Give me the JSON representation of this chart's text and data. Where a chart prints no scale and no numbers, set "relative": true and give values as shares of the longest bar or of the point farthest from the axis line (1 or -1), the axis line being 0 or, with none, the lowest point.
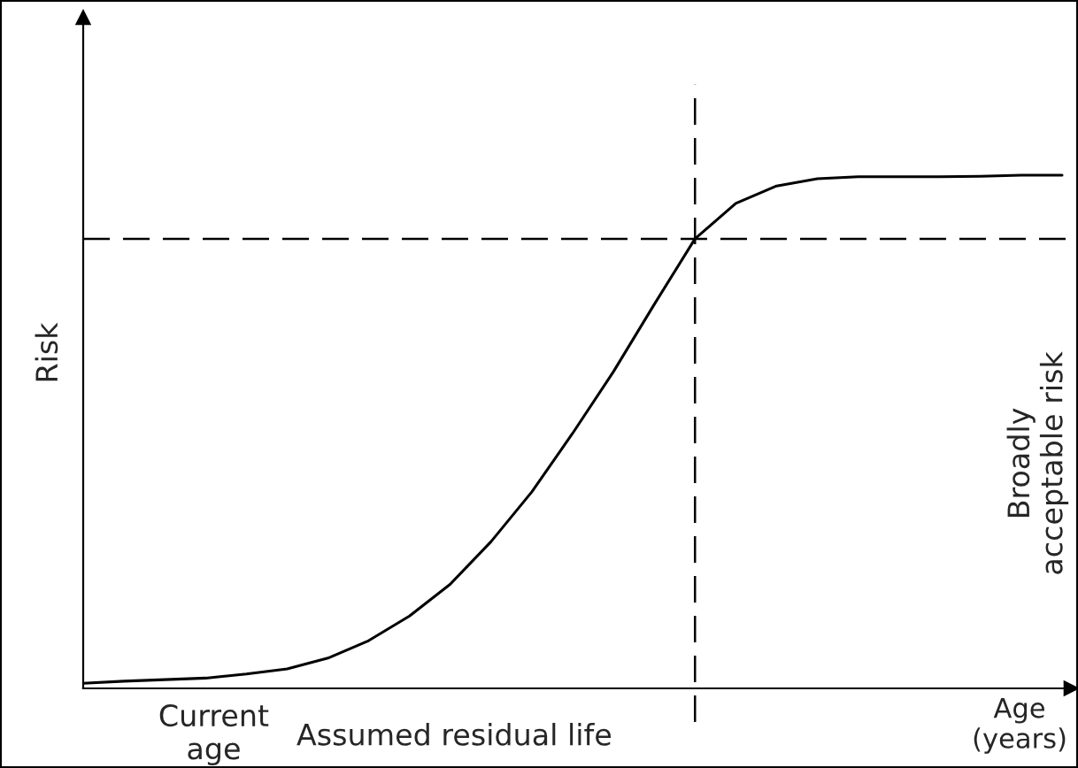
{
  "chart_data": {
    "type": "line",
    "relative": true,
    "xlabel": "Age\n(years)",
    "ylabel": "Risk",
    "categories": [
      null,
      null,
      null,
      null,
      null,
      null,
      null,
      null,
      null,
      null,
      null,
      null,
      null,
      null,
      null,
      null,
      null,
      null,
      null,
      null,
      null,
      null,
      null,
      null,
      null
    ],
    "series": [
      {
        "color": "#000000",
        "values": [
          0.01,
          0.014,
          0.017,
          0.02,
          0.028,
          0.038,
          0.059,
          0.093,
          0.141,
          0.203,
          0.286,
          0.383,
          0.497,
          0.617,
          0.748,
          0.876,
          0.945,
          0.979,
          0.993,
          0.997,
          0.997,
          0.997,
          0.998,
          1.0,
          1.0
        ]
      }
    ],
    "ref_lines": [
      {
        "axis": "y",
        "value": 0.876,
        "color": "#000000",
        "line_style": "dashed"
      }
    ],
    "annotations": [
      "Current age",
      "Assumed residual life",
      "Broadly acceptable risk"
    ],
    "grid": false,
    "legend": false,
    "line_style": "solid",
    "marker": "none"
  }
}
